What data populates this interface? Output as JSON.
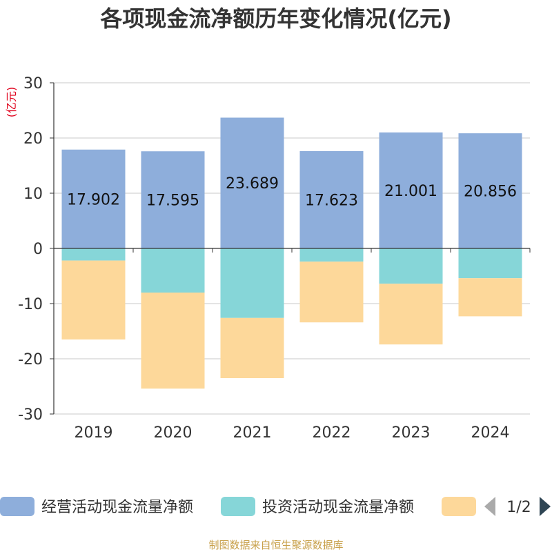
{
  "chart_data": {
    "type": "bar",
    "stacked": true,
    "title": "各项现金流净额历年变化情况(亿元)",
    "ylabel": "(亿元)",
    "categories": [
      "2019",
      "2020",
      "2021",
      "2022",
      "2023",
      "2024"
    ],
    "ylim": [
      -30,
      30
    ],
    "yticks": [
      30,
      20,
      10,
      0,
      -10,
      -20,
      -30
    ],
    "grid": true,
    "series": [
      {
        "name": "经营活动现金流量净额",
        "color": "#8eaedb",
        "values": [
          17.902,
          17.595,
          23.689,
          17.623,
          21.001,
          20.856
        ],
        "labels": [
          "17.902",
          "17.595",
          "23.689",
          "17.623",
          "21.001",
          "20.856"
        ]
      },
      {
        "name": "投资活动现金流量净额",
        "color": "#86d6d8",
        "values": [
          -2.2,
          -8.0,
          -12.6,
          -2.4,
          -6.4,
          -5.4
        ]
      },
      {
        "name": "",
        "color": "#fdd89a",
        "values": [
          -14.3,
          -17.4,
          -10.9,
          -11.0,
          -11.0,
          -6.9
        ]
      }
    ],
    "legend": {
      "placement": "bottom",
      "page": "1/2"
    }
  },
  "source": "制图数据来自恒生聚源数据库"
}
